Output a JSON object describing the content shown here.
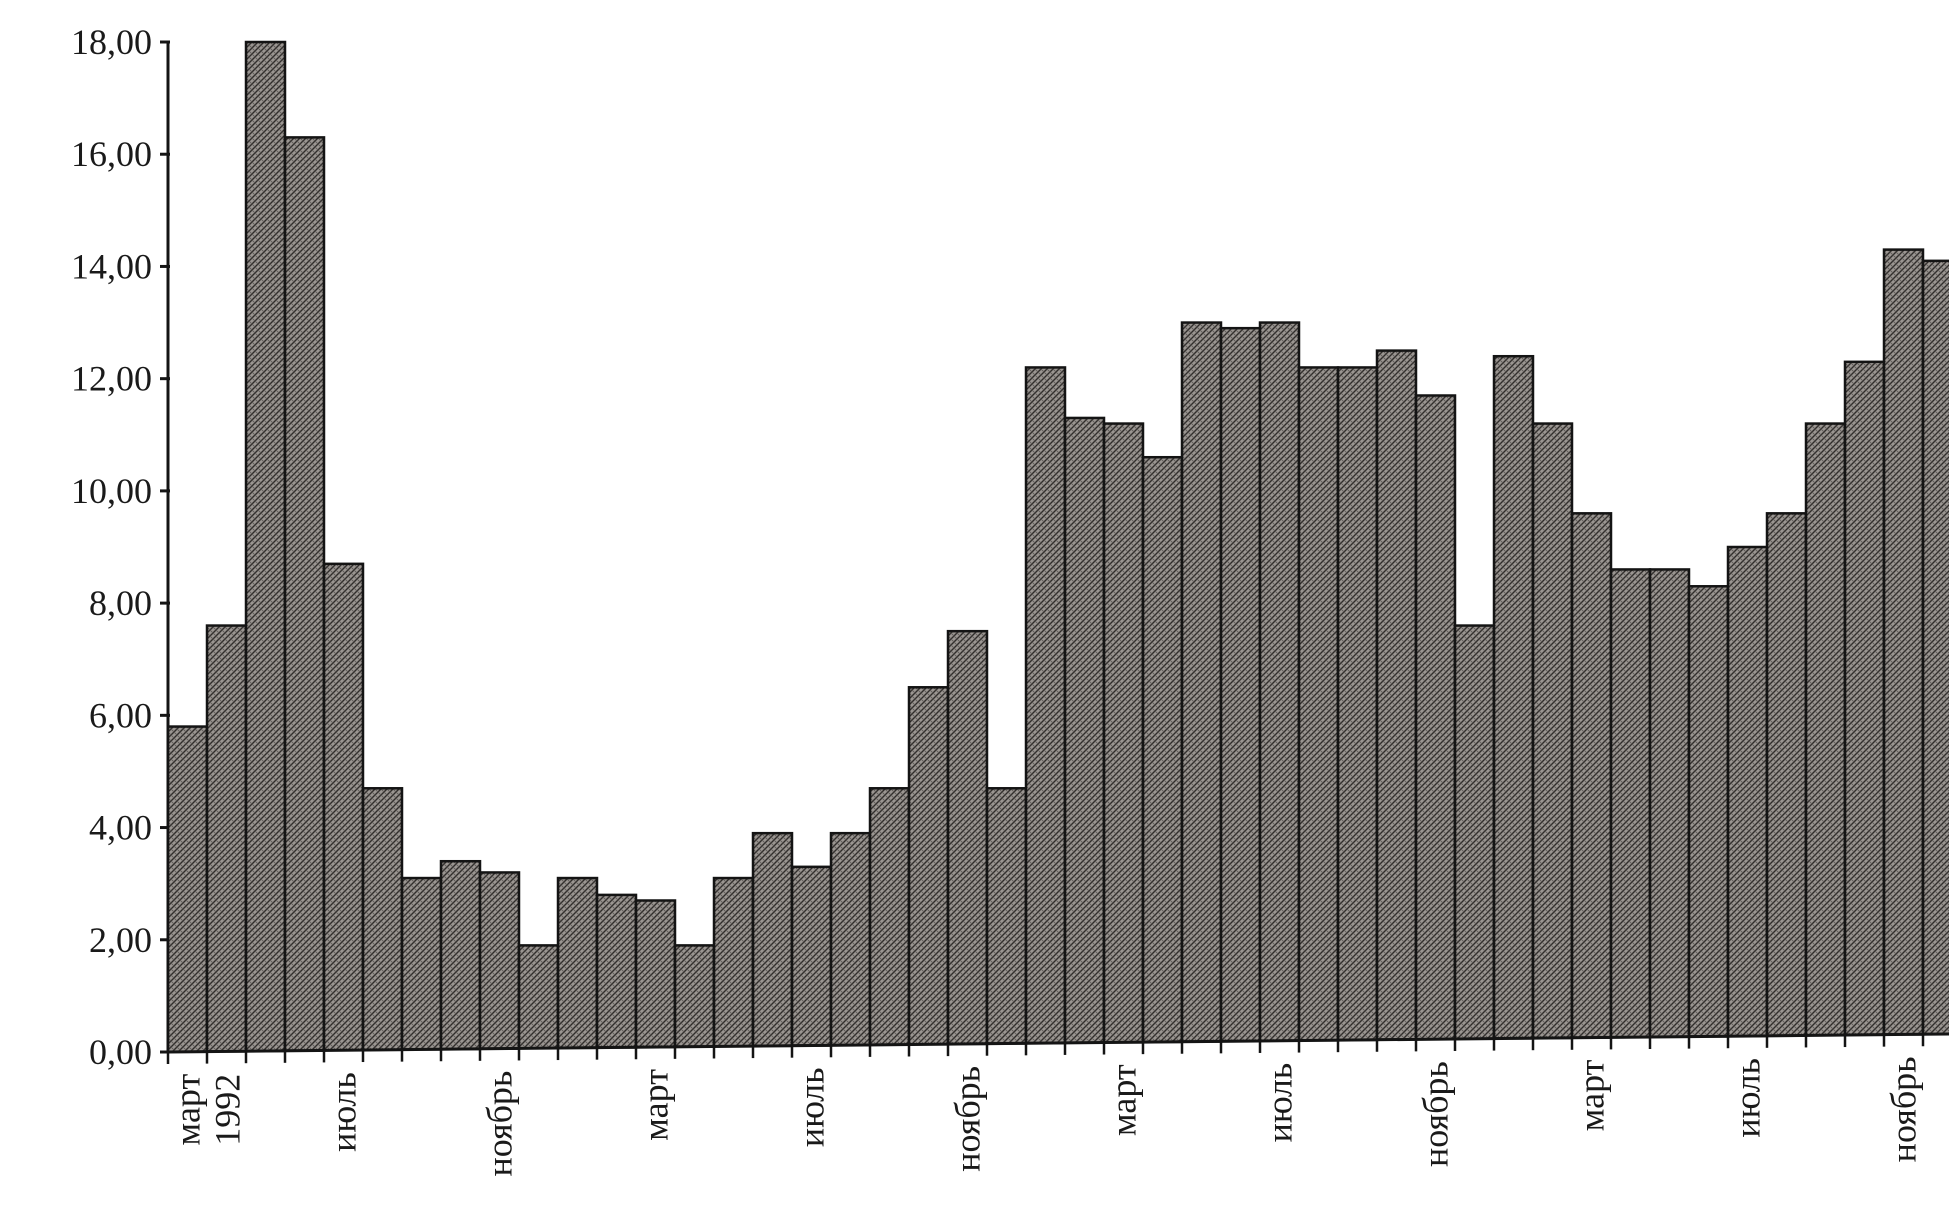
{
  "chart_data": {
    "type": "bar",
    "title": "",
    "xlabel": "",
    "ylabel": "",
    "ylim": [
      0,
      18
    ],
    "y_ticks": [
      "0,00",
      "2,00",
      "4,00",
      "6,00",
      "8,00",
      "10,00",
      "12,00",
      "14,00",
      "16,00",
      "18,00"
    ],
    "y_tick_values": [
      0,
      2,
      4,
      6,
      8,
      10,
      12,
      14,
      16,
      18
    ],
    "grid": false,
    "legend": "none",
    "colors": {
      "bar_fill": "#8f8a86",
      "bar_stroke": "#141414",
      "axis": "#141414"
    },
    "x_labels": [
      {
        "index": 0,
        "lines": [
          "март",
          "1992"
        ]
      },
      {
        "index": 4,
        "lines": [
          "июль"
        ]
      },
      {
        "index": 8,
        "lines": [
          "ноябрь"
        ]
      },
      {
        "index": 12,
        "lines": [
          "март"
        ]
      },
      {
        "index": 16,
        "lines": [
          "июль"
        ]
      },
      {
        "index": 20,
        "lines": [
          "ноябрь"
        ]
      },
      {
        "index": 24,
        "lines": [
          "март"
        ]
      },
      {
        "index": 28,
        "lines": [
          "июль"
        ]
      },
      {
        "index": 32,
        "lines": [
          "ноябрь"
        ]
      },
      {
        "index": 36,
        "lines": [
          "март"
        ]
      },
      {
        "index": 40,
        "lines": [
          "июль"
        ]
      },
      {
        "index": 44,
        "lines": [
          "ноябрь"
        ]
      }
    ],
    "values": [
      5.8,
      7.6,
      18.0,
      16.3,
      8.7,
      4.7,
      3.1,
      3.4,
      3.2,
      1.9,
      3.1,
      2.8,
      2.7,
      1.9,
      3.1,
      3.9,
      3.3,
      3.9,
      4.7,
      6.5,
      7.5,
      4.7,
      12.2,
      11.3,
      11.2,
      10.6,
      13.0,
      12.9,
      13.0,
      12.2,
      12.2,
      12.5,
      11.7,
      7.6,
      12.4,
      11.2,
      9.6,
      8.6,
      8.6,
      8.3,
      9.0,
      9.6,
      11.2,
      12.3,
      14.3,
      14.1
    ]
  }
}
